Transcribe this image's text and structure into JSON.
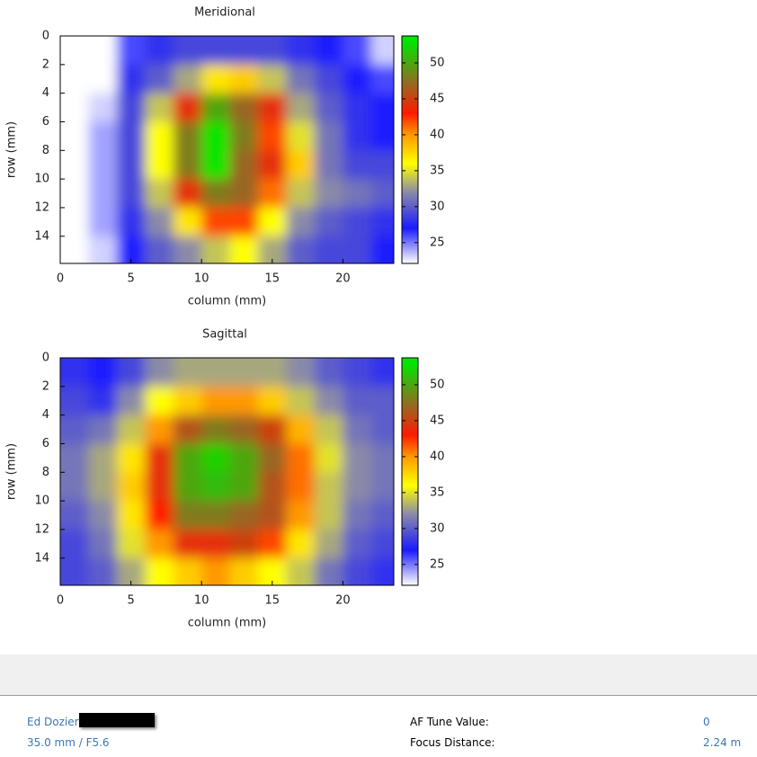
{
  "chart_data": [
    {
      "type": "heatmap",
      "title": "Meridional",
      "xlabel": "column (mm)",
      "ylabel": "row (mm)",
      "x": [
        1,
        3,
        5,
        7,
        9,
        11,
        13,
        15,
        17,
        19,
        21,
        23
      ],
      "y": [
        1,
        3,
        5,
        7,
        9,
        11,
        13,
        15
      ],
      "z": [
        [
          22,
          22,
          26,
          28,
          29,
          29,
          29,
          29,
          28,
          27,
          26,
          23
        ],
        [
          22,
          22,
          28,
          30,
          33,
          37,
          38,
          34,
          31,
          29,
          27,
          26
        ],
        [
          22,
          23,
          29,
          34,
          44,
          50,
          47,
          44,
          33,
          30,
          28,
          27
        ],
        [
          22,
          24,
          29,
          36,
          48,
          53,
          48,
          42,
          35,
          31,
          28,
          27
        ],
        [
          22,
          24,
          29,
          36,
          48,
          53,
          47,
          44,
          38,
          31,
          29,
          29
        ],
        [
          22,
          24,
          29,
          34,
          44,
          48,
          47,
          41,
          34,
          32,
          31,
          30
        ],
        [
          22,
          24,
          28,
          32,
          37,
          42,
          42,
          36,
          32,
          30,
          29,
          28
        ],
        [
          22,
          23,
          27,
          30,
          32,
          34,
          36,
          33,
          30,
          29,
          29,
          27
        ]
      ],
      "xlim": [
        0,
        23.6
      ],
      "ylim": [
        0,
        15.9
      ],
      "xticks": [
        0,
        5,
        10,
        15,
        20
      ],
      "yticks": [
        0,
        2,
        4,
        6,
        8,
        10,
        12,
        14
      ],
      "zlim": [
        22.1,
        53.75
      ],
      "zticks": [
        25,
        30,
        35,
        40,
        45,
        50
      ],
      "colorscale": [
        [
          22,
          "#ffffff"
        ],
        [
          27,
          "#1a1aff"
        ],
        [
          32,
          "#8a8aa8"
        ],
        [
          36,
          "#ffff00"
        ],
        [
          40,
          "#ff9900"
        ],
        [
          43,
          "#ff1a00"
        ],
        [
          47,
          "#996622"
        ],
        [
          53,
          "#00e600"
        ]
      ]
    },
    {
      "type": "heatmap",
      "title": "Sagittal",
      "xlabel": "column (mm)",
      "ylabel": "row (mm)",
      "x": [
        1,
        3,
        5,
        7,
        9,
        11,
        13,
        15,
        17,
        19,
        21,
        23
      ],
      "y": [
        1,
        3,
        5,
        7,
        9,
        11,
        13,
        15
      ],
      "z": [
        [
          28,
          27,
          29,
          32,
          33,
          33,
          33,
          33,
          32,
          30,
          29,
          28
        ],
        [
          29,
          28,
          32,
          36,
          38,
          40,
          40,
          38,
          34,
          32,
          30,
          30
        ],
        [
          30,
          31,
          34,
          40,
          46,
          48,
          47,
          45,
          39,
          34,
          31,
          30
        ],
        [
          31,
          33,
          37,
          44,
          50,
          52,
          50,
          47,
          41,
          35,
          32,
          31
        ],
        [
          31,
          33,
          38,
          44,
          50,
          51,
          50,
          46,
          41,
          34,
          32,
          31
        ],
        [
          30,
          32,
          37,
          43,
          48,
          48,
          47,
          46,
          40,
          34,
          31,
          30
        ],
        [
          29,
          31,
          35,
          40,
          44,
          44,
          45,
          42,
          37,
          33,
          30,
          29
        ],
        [
          29,
          30,
          33,
          36,
          38,
          40,
          38,
          36,
          34,
          31,
          29,
          28
        ]
      ],
      "xlim": [
        0,
        23.6
      ],
      "ylim": [
        0,
        15.9
      ],
      "xticks": [
        0,
        5,
        10,
        15,
        20
      ],
      "yticks": [
        0,
        2,
        4,
        6,
        8,
        10,
        12,
        14
      ],
      "zlim": [
        22.1,
        53.75
      ],
      "zticks": [
        25,
        30,
        35,
        40,
        45,
        50
      ],
      "colorscale": [
        [
          22,
          "#ffffff"
        ],
        [
          27,
          "#1a1aff"
        ],
        [
          32,
          "#8a8aa8"
        ],
        [
          36,
          "#ffff00"
        ],
        [
          40,
          "#ff9900"
        ],
        [
          43,
          "#ff1a00"
        ],
        [
          47,
          "#996622"
        ],
        [
          53,
          "#00e600"
        ]
      ]
    }
  ],
  "footer": {
    "user": "Ed Dozier",
    "lens": "35.0 mm / F5.6",
    "af_tune_label": "AF Tune Value:",
    "af_tune_value": "0",
    "focus_label": "Focus Distance:",
    "focus_value": "2.24 m"
  }
}
